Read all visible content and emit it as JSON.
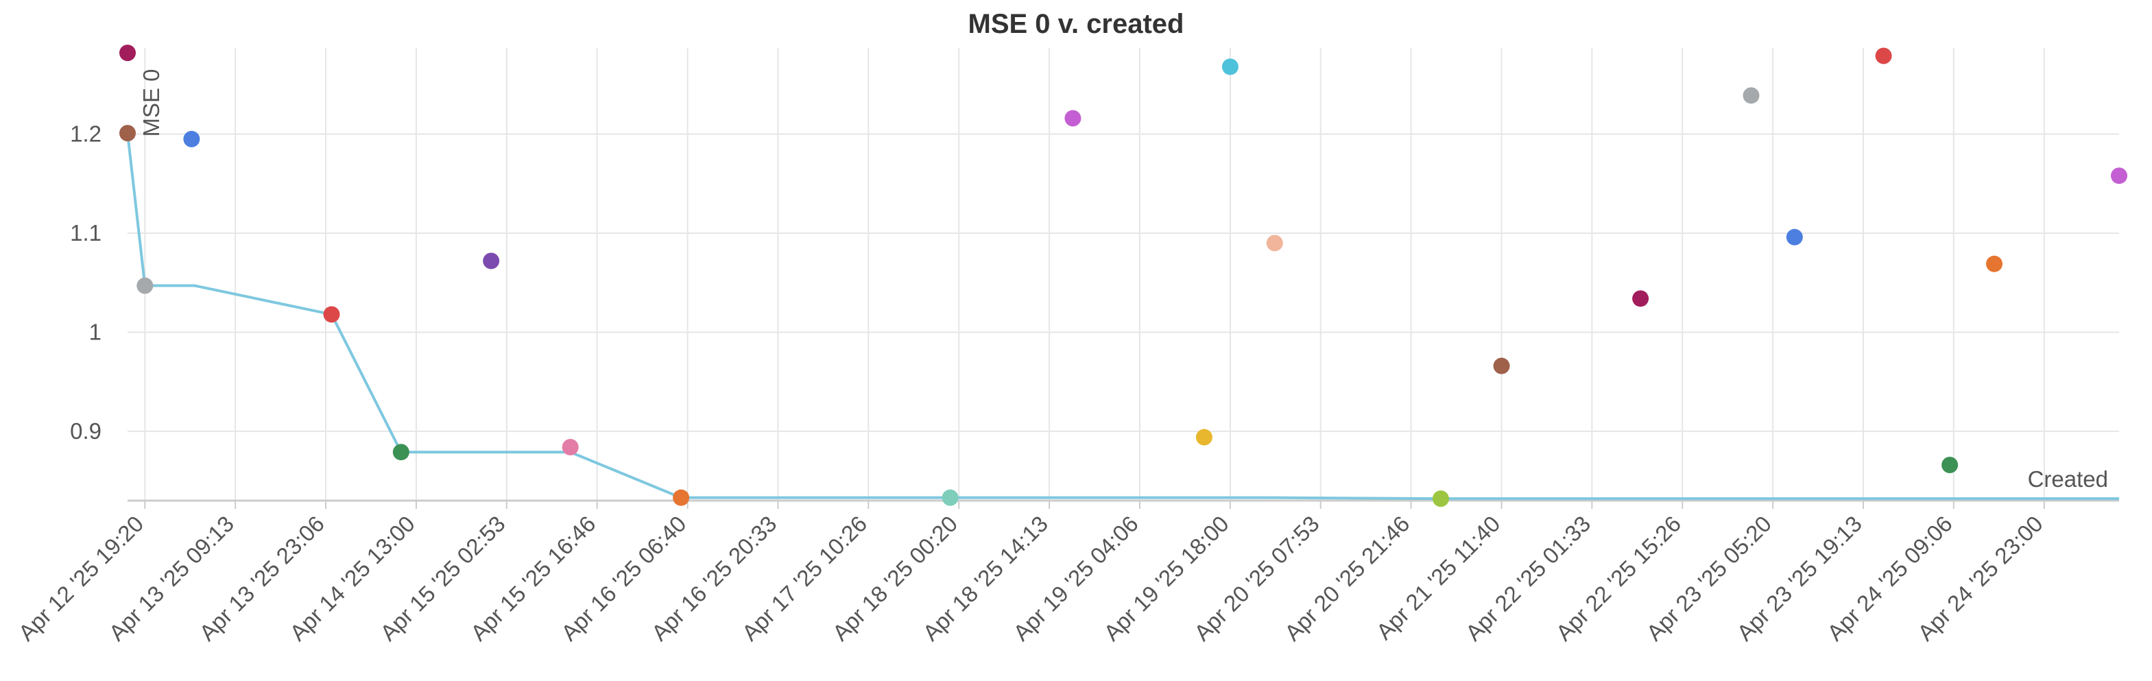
{
  "chart_data": {
    "type": "scatter",
    "title": "MSE 0 v. created",
    "ylabel": "MSE 0",
    "xlabel": "",
    "ylim": [
      0.83,
      1.28
    ],
    "yticks": [
      0.9,
      1,
      1.1,
      1.2
    ],
    "ytick_labels": [
      "0.9",
      "1",
      "1.1",
      "1.2"
    ],
    "xlim": [
      "2025-04-12T16:40",
      "2025-04-25T10:30"
    ],
    "xticks": [
      "2025-04-12T19:20",
      "2025-04-13T09:13",
      "2025-04-13T23:06",
      "2025-04-14T13:00",
      "2025-04-15T02:53",
      "2025-04-15T16:46",
      "2025-04-16T06:40",
      "2025-04-16T20:33",
      "2025-04-17T10:26",
      "2025-04-18T00:20",
      "2025-04-18T14:13",
      "2025-04-19T04:06",
      "2025-04-19T18:00",
      "2025-04-20T07:53",
      "2025-04-20T21:46",
      "2025-04-21T11:40",
      "2025-04-22T01:33",
      "2025-04-22T15:26",
      "2025-04-23T05:20",
      "2025-04-23T19:13",
      "2025-04-24T09:06",
      "2025-04-24T23:00"
    ],
    "xtick_labels": [
      "Apr 12 '25 19:20",
      "Apr 13 '25 09:13",
      "Apr 13 '25 23:06",
      "Apr 14 '25 13:00",
      "Apr 15 '25 02:53",
      "Apr 15 '25 16:46",
      "Apr 16 '25 06:40",
      "Apr 16 '25 20:33",
      "Apr 17 '25 10:26",
      "Apr 18 '25 00:20",
      "Apr 18 '25 14:13",
      "Apr 19 '25 04:06",
      "Apr 19 '25 18:00",
      "Apr 20 '25 07:53",
      "Apr 20 '25 21:46",
      "Apr 21 '25 11:40",
      "Apr 22 '25 01:33",
      "Apr 22 '25 15:26",
      "Apr 23 '25 05:20",
      "Apr 23 '25 19:13",
      "Apr 24 '25 09:06",
      "Apr 24 '25 23:00"
    ],
    "grid": true,
    "points": [
      {
        "x": "2025-04-12T16:40",
        "y": 1.282,
        "color": "#a21d5b"
      },
      {
        "x": "2025-04-12T16:40",
        "y": 1.201,
        "color": "#a0614b"
      },
      {
        "x": "2025-04-12T19:20",
        "y": 1.047,
        "color": "#a6a9ab"
      },
      {
        "x": "2025-04-13T02:30",
        "y": 1.195,
        "color": "#4c7fe0"
      },
      {
        "x": "2025-04-14T00:00",
        "y": 1.018,
        "color": "#dc4848"
      },
      {
        "x": "2025-04-14T10:40",
        "y": 0.879,
        "color": "#3c9155"
      },
      {
        "x": "2025-04-15T00:30",
        "y": 1.072,
        "color": "#7c4bb0"
      },
      {
        "x": "2025-04-15T12:40",
        "y": 0.884,
        "color": "#e37ca7"
      },
      {
        "x": "2025-04-16T05:40",
        "y": 0.833,
        "color": "#e57530"
      },
      {
        "x": "2025-04-17T23:00",
        "y": 0.833,
        "color": "#7fcdbb"
      },
      {
        "x": "2025-04-18T17:50",
        "y": 1.216,
        "color": "#c45fd3"
      },
      {
        "x": "2025-04-19T14:00",
        "y": 0.894,
        "color": "#e8b72d"
      },
      {
        "x": "2025-04-19T18:00",
        "y": 1.268,
        "color": "#4ec2da"
      },
      {
        "x": "2025-04-20T00:50",
        "y": 1.09,
        "color": "#f0b59a"
      },
      {
        "x": "2025-04-21T02:20",
        "y": 0.832,
        "color": "#9cc641"
      },
      {
        "x": "2025-04-21T11:40",
        "y": 0.966,
        "color": "#a0614b"
      },
      {
        "x": "2025-04-22T09:00",
        "y": 1.034,
        "color": "#a21d5b"
      },
      {
        "x": "2025-04-23T02:00",
        "y": 1.239,
        "color": "#a6a9ab"
      },
      {
        "x": "2025-04-23T08:40",
        "y": 1.096,
        "color": "#4c7fe0"
      },
      {
        "x": "2025-04-23T22:20",
        "y": 1.279,
        "color": "#dc4848"
      },
      {
        "x": "2025-04-24T08:30",
        "y": 0.866,
        "color": "#3c9155"
      },
      {
        "x": "2025-04-24T15:20",
        "y": 1.069,
        "color": "#e57530"
      },
      {
        "x": "2025-04-25T10:30",
        "y": 1.158,
        "color": "#c45fd3"
      }
    ],
    "series": [
      {
        "name": "",
        "color": "#7ec8df",
        "points": [
          {
            "x": "2025-04-12T16:40",
            "y": 1.201
          },
          {
            "x": "2025-04-12T19:20",
            "y": 1.047
          },
          {
            "x": "2025-04-13T03:00",
            "y": 1.047
          },
          {
            "x": "2025-04-14T00:00",
            "y": 1.018
          },
          {
            "x": "2025-04-14T10:40",
            "y": 0.879
          },
          {
            "x": "2025-04-15T12:40",
            "y": 0.879
          },
          {
            "x": "2025-04-16T05:40",
            "y": 0.833
          },
          {
            "x": "2025-04-20T00:00",
            "y": 0.833
          },
          {
            "x": "2025-04-21T02:20",
            "y": 0.832
          },
          {
            "x": "2025-04-25T10:30",
            "y": 0.832
          }
        ]
      }
    ],
    "annotations": [
      {
        "text": "Created"
      }
    ]
  }
}
